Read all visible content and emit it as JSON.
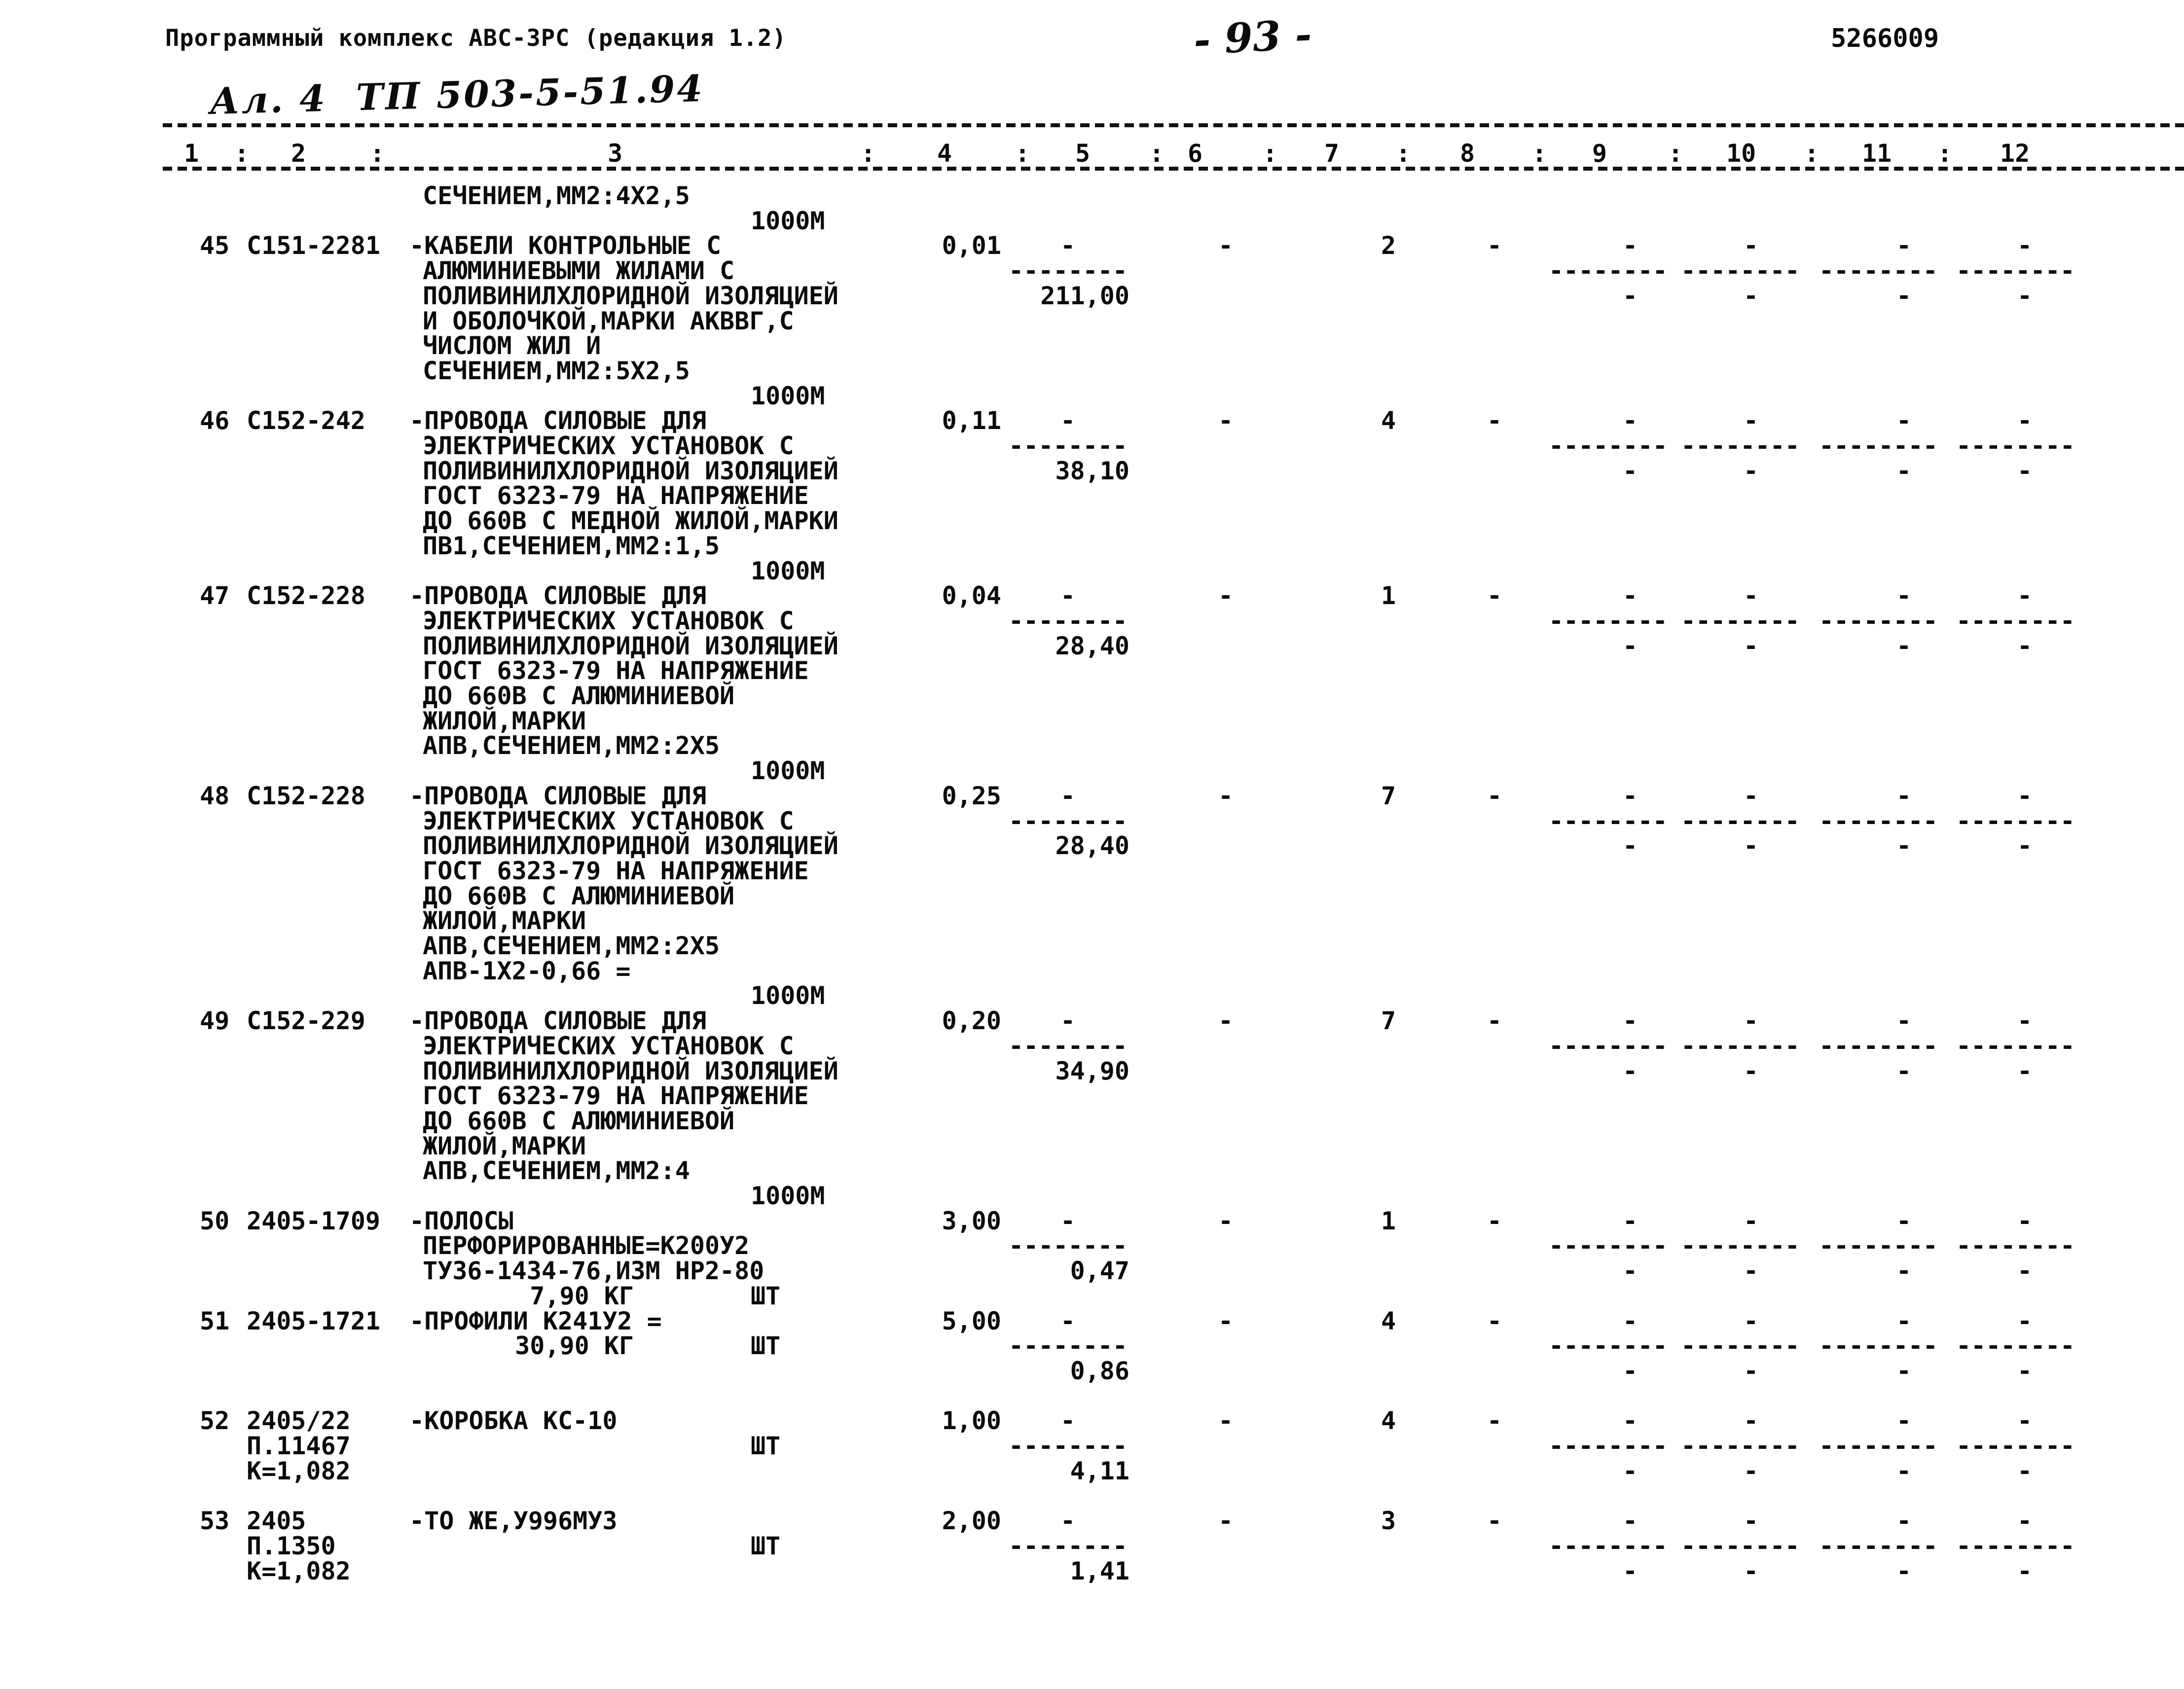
{
  "header": {
    "program_title": "Программный комплекс АВС-3РС (редакция 1.2)",
    "page_number": "- 93 -",
    "doc_code": "5266009",
    "handwritten_note": "Ал. 4  ТП 503-5-51.94"
  },
  "table": {
    "column_headers": [
      "1",
      "2",
      "3",
      "4",
      "5",
      "6",
      "7",
      "8",
      "9",
      "10",
      "11",
      "12"
    ],
    "column_separator": ":",
    "rows": [
      {
        "lines": [
          {
            "desc": "СЕЧЕНИЕМ,ММ2:4Х2,5"
          },
          {
            "unit": "1000М"
          }
        ]
      },
      {
        "lines": [
          {
            "num": "45",
            "code": "С151-2281",
            "desc": "-КАБЕЛИ КОНТРОЛЬНЫЕ С",
            "qty": "0,01",
            "dash5": "-",
            "dash6": "-",
            "count": "2",
            "dash8": "-",
            "dashes": [
              "-",
              "-",
              "-",
              "-"
            ]
          },
          {
            "desc": "АЛЮМИНИЕВЫМИ ЖИЛАМИ С",
            "sep5": "--------",
            "seps": [
              "--------",
              "--------",
              "--------",
              "--------"
            ]
          },
          {
            "desc": "ПОЛИВИНИЛХЛОРИДНОЙ ИЗОЛЯЦИЕЙ",
            "price": "211,00",
            "dashes": [
              "-",
              "-",
              "-",
              "-"
            ]
          },
          {
            "desc": "И ОБОЛОЧКОЙ,МАРКИ АКВВГ,С"
          },
          {
            "desc": "ЧИСЛОМ ЖИЛ И"
          },
          {
            "desc": "СЕЧЕНИЕМ,ММ2:5Х2,5"
          },
          {
            "unit": "1000М"
          }
        ]
      },
      {
        "lines": [
          {
            "num": "46",
            "code": "С152-242",
            "desc": "-ПРОВОДА СИЛОВЫЕ ДЛЯ",
            "qty": "0,11",
            "dash5": "-",
            "dash6": "-",
            "count": "4",
            "dash8": "-",
            "dashes": [
              "-",
              "-",
              "-",
              "-"
            ]
          },
          {
            "desc": "ЭЛЕКТРИЧЕСКИХ УСТАНОВОК С",
            "sep5": "--------",
            "seps": [
              "--------",
              "--------",
              "--------",
              "--------"
            ]
          },
          {
            "desc": "ПОЛИВИНИЛХЛОРИДНОЙ ИЗОЛЯЦИЕЙ",
            "price": "38,10",
            "dashes": [
              "-",
              "-",
              "-",
              "-"
            ]
          },
          {
            "desc": "ГОСТ 6323-79 НА НАПРЯЖЕНИЕ"
          },
          {
            "desc": "ДО 660В С МЕДНОЙ ЖИЛОЙ,МАРКИ"
          },
          {
            "desc": "ПВ1,СЕЧЕНИЕМ,ММ2:1,5"
          },
          {
            "unit": "1000М"
          }
        ]
      },
      {
        "lines": [
          {
            "num": "47",
            "code": "С152-228",
            "desc": "-ПРОВОДА СИЛОВЫЕ ДЛЯ",
            "qty": "0,04",
            "dash5": "-",
            "dash6": "-",
            "count": "1",
            "dash8": "-",
            "dashes": [
              "-",
              "-",
              "-",
              "-"
            ]
          },
          {
            "desc": "ЭЛЕКТРИЧЕСКИХ УСТАНОВОК С",
            "sep5": "--------",
            "seps": [
              "--------",
              "--------",
              "--------",
              "--------"
            ]
          },
          {
            "desc": "ПОЛИВИНИЛХЛОРИДНОЙ ИЗОЛЯЦИЕЙ",
            "price": "28,40",
            "dashes": [
              "-",
              "-",
              "-",
              "-"
            ]
          },
          {
            "desc": "ГОСТ 6323-79 НА НАПРЯЖЕНИЕ"
          },
          {
            "desc": "ДО 660В С АЛЮМИНИЕВОЙ"
          },
          {
            "desc": "ЖИЛОЙ,МАРКИ"
          },
          {
            "desc": "АПВ,СЕЧЕНИЕМ,ММ2:2Х5"
          },
          {
            "unit": "1000М"
          }
        ]
      },
      {
        "lines": [
          {
            "num": "48",
            "code": "С152-228",
            "desc": "-ПРОВОДА СИЛОВЫЕ ДЛЯ",
            "qty": "0,25",
            "dash5": "-",
            "dash6": "-",
            "count": "7",
            "dash8": "-",
            "dashes": [
              "-",
              "-",
              "-",
              "-"
            ]
          },
          {
            "desc": "ЭЛЕКТРИЧЕСКИХ УСТАНОВОК С",
            "sep5": "--------",
            "seps": [
              "--------",
              "--------",
              "--------",
              "--------"
            ]
          },
          {
            "desc": "ПОЛИВИНИЛХЛОРИДНОЙ ИЗОЛЯЦИЕЙ",
            "price": "28,40",
            "dashes": [
              "-",
              "-",
              "-",
              "-"
            ]
          },
          {
            "desc": "ГОСТ 6323-79 НА НАПРЯЖЕНИЕ"
          },
          {
            "desc": "ДО 660В С АЛЮМИНИЕВОЙ"
          },
          {
            "desc": "ЖИЛОЙ,МАРКИ"
          },
          {
            "desc": "АПВ,СЕЧЕНИЕМ,ММ2:2Х5"
          },
          {
            "desc": "АПВ-1Х2-0,66 ="
          },
          {
            "unit": "1000М"
          }
        ]
      },
      {
        "lines": [
          {
            "num": "49",
            "code": "С152-229",
            "desc": "-ПРОВОДА СИЛОВЫЕ ДЛЯ",
            "qty": "0,20",
            "dash5": "-",
            "dash6": "-",
            "count": "7",
            "dash8": "-",
            "dashes": [
              "-",
              "-",
              "-",
              "-"
            ]
          },
          {
            "desc": "ЭЛЕКТРИЧЕСКИХ УСТАНОВОК С",
            "sep5": "--------",
            "seps": [
              "--------",
              "--------",
              "--------",
              "--------"
            ]
          },
          {
            "desc": "ПОЛИВИНИЛХЛОРИДНОЙ ИЗОЛЯЦИЕЙ",
            "price": "34,90",
            "dashes": [
              "-",
              "-",
              "-",
              "-"
            ]
          },
          {
            "desc": "ГОСТ 6323-79 НА НАПРЯЖЕНИЕ"
          },
          {
            "desc": "ДО 660В С АЛЮМИНИЕВОЙ"
          },
          {
            "desc": "ЖИЛОЙ,МАРКИ"
          },
          {
            "desc": "АПВ,СЕЧЕНИЕМ,ММ2:4"
          },
          {
            "unit": "1000М"
          }
        ]
      },
      {
        "lines": [
          {
            "num": "50",
            "code": "2405-1709",
            "desc": "-ПОЛОСЫ",
            "qty": "3,00",
            "dash5": "-",
            "dash6": "-",
            "count": "1",
            "dash8": "-",
            "dashes": [
              "-",
              "-",
              "-",
              "-"
            ]
          },
          {
            "desc": "ПЕРФОРИРОВАННЫЕ=К200У2",
            "sep5": "--------",
            "seps": [
              "--------",
              "--------",
              "--------",
              "--------"
            ]
          },
          {
            "desc": "ТУ36-1434-76,ИЗМ НР2-80",
            "price": "0,47",
            "dashes": [
              "-",
              "-",
              "-",
              "-"
            ]
          },
          {
            "weight": "7,90 КГ",
            "unit": "ШТ"
          }
        ]
      },
      {
        "lines": [
          {
            "num": "51",
            "code": "2405-1721",
            "desc": "-ПРОФИЛИ К241У2 =",
            "qty": "5,00",
            "dash5": "-",
            "dash6": "-",
            "count": "4",
            "dash8": "-",
            "dashes": [
              "-",
              "-",
              "-",
              "-"
            ]
          },
          {
            "weight": "30,90 КГ",
            "unit": "ШТ",
            "sep5": "--------",
            "seps": [
              "--------",
              "--------",
              "--------",
              "--------"
            ]
          },
          {
            "price": "0,86",
            "dashes": [
              "-",
              "-",
              "-",
              "-"
            ]
          }
        ]
      },
      {
        "gap_before": 1,
        "lines": [
          {
            "num": "52",
            "code": "2405/22",
            "desc": "-КОРОБКА КС-10",
            "qty": "1,00",
            "dash5": "-",
            "dash6": "-",
            "count": "4",
            "dash8": "-",
            "dashes": [
              "-",
              "-",
              "-",
              "-"
            ]
          },
          {
            "code2": "П.11467",
            "unit": "ШТ",
            "sep5": "--------",
            "seps": [
              "--------",
              "--------",
              "--------",
              "--------"
            ]
          },
          {
            "code2": "К=1,082",
            "price": "4,11",
            "dashes": [
              "-",
              "-",
              "-",
              "-"
            ]
          }
        ]
      },
      {
        "gap_before": 1,
        "lines": [
          {
            "num": "53",
            "code": "2405",
            "desc": "-ТО ЖЕ,У996МУ3",
            "qty": "2,00",
            "dash5": "-",
            "dash6": "-",
            "count": "3",
            "dash8": "-",
            "dashes": [
              "-",
              "-",
              "-",
              "-"
            ]
          },
          {
            "code2": "П.1350",
            "unit": "ШТ",
            "sep5": "--------",
            "seps": [
              "--------",
              "--------",
              "--------",
              "--------"
            ]
          },
          {
            "code2": "К=1,082",
            "price": "1,41",
            "dashes": [
              "-",
              "-",
              "-",
              "-"
            ]
          }
        ]
      }
    ]
  }
}
